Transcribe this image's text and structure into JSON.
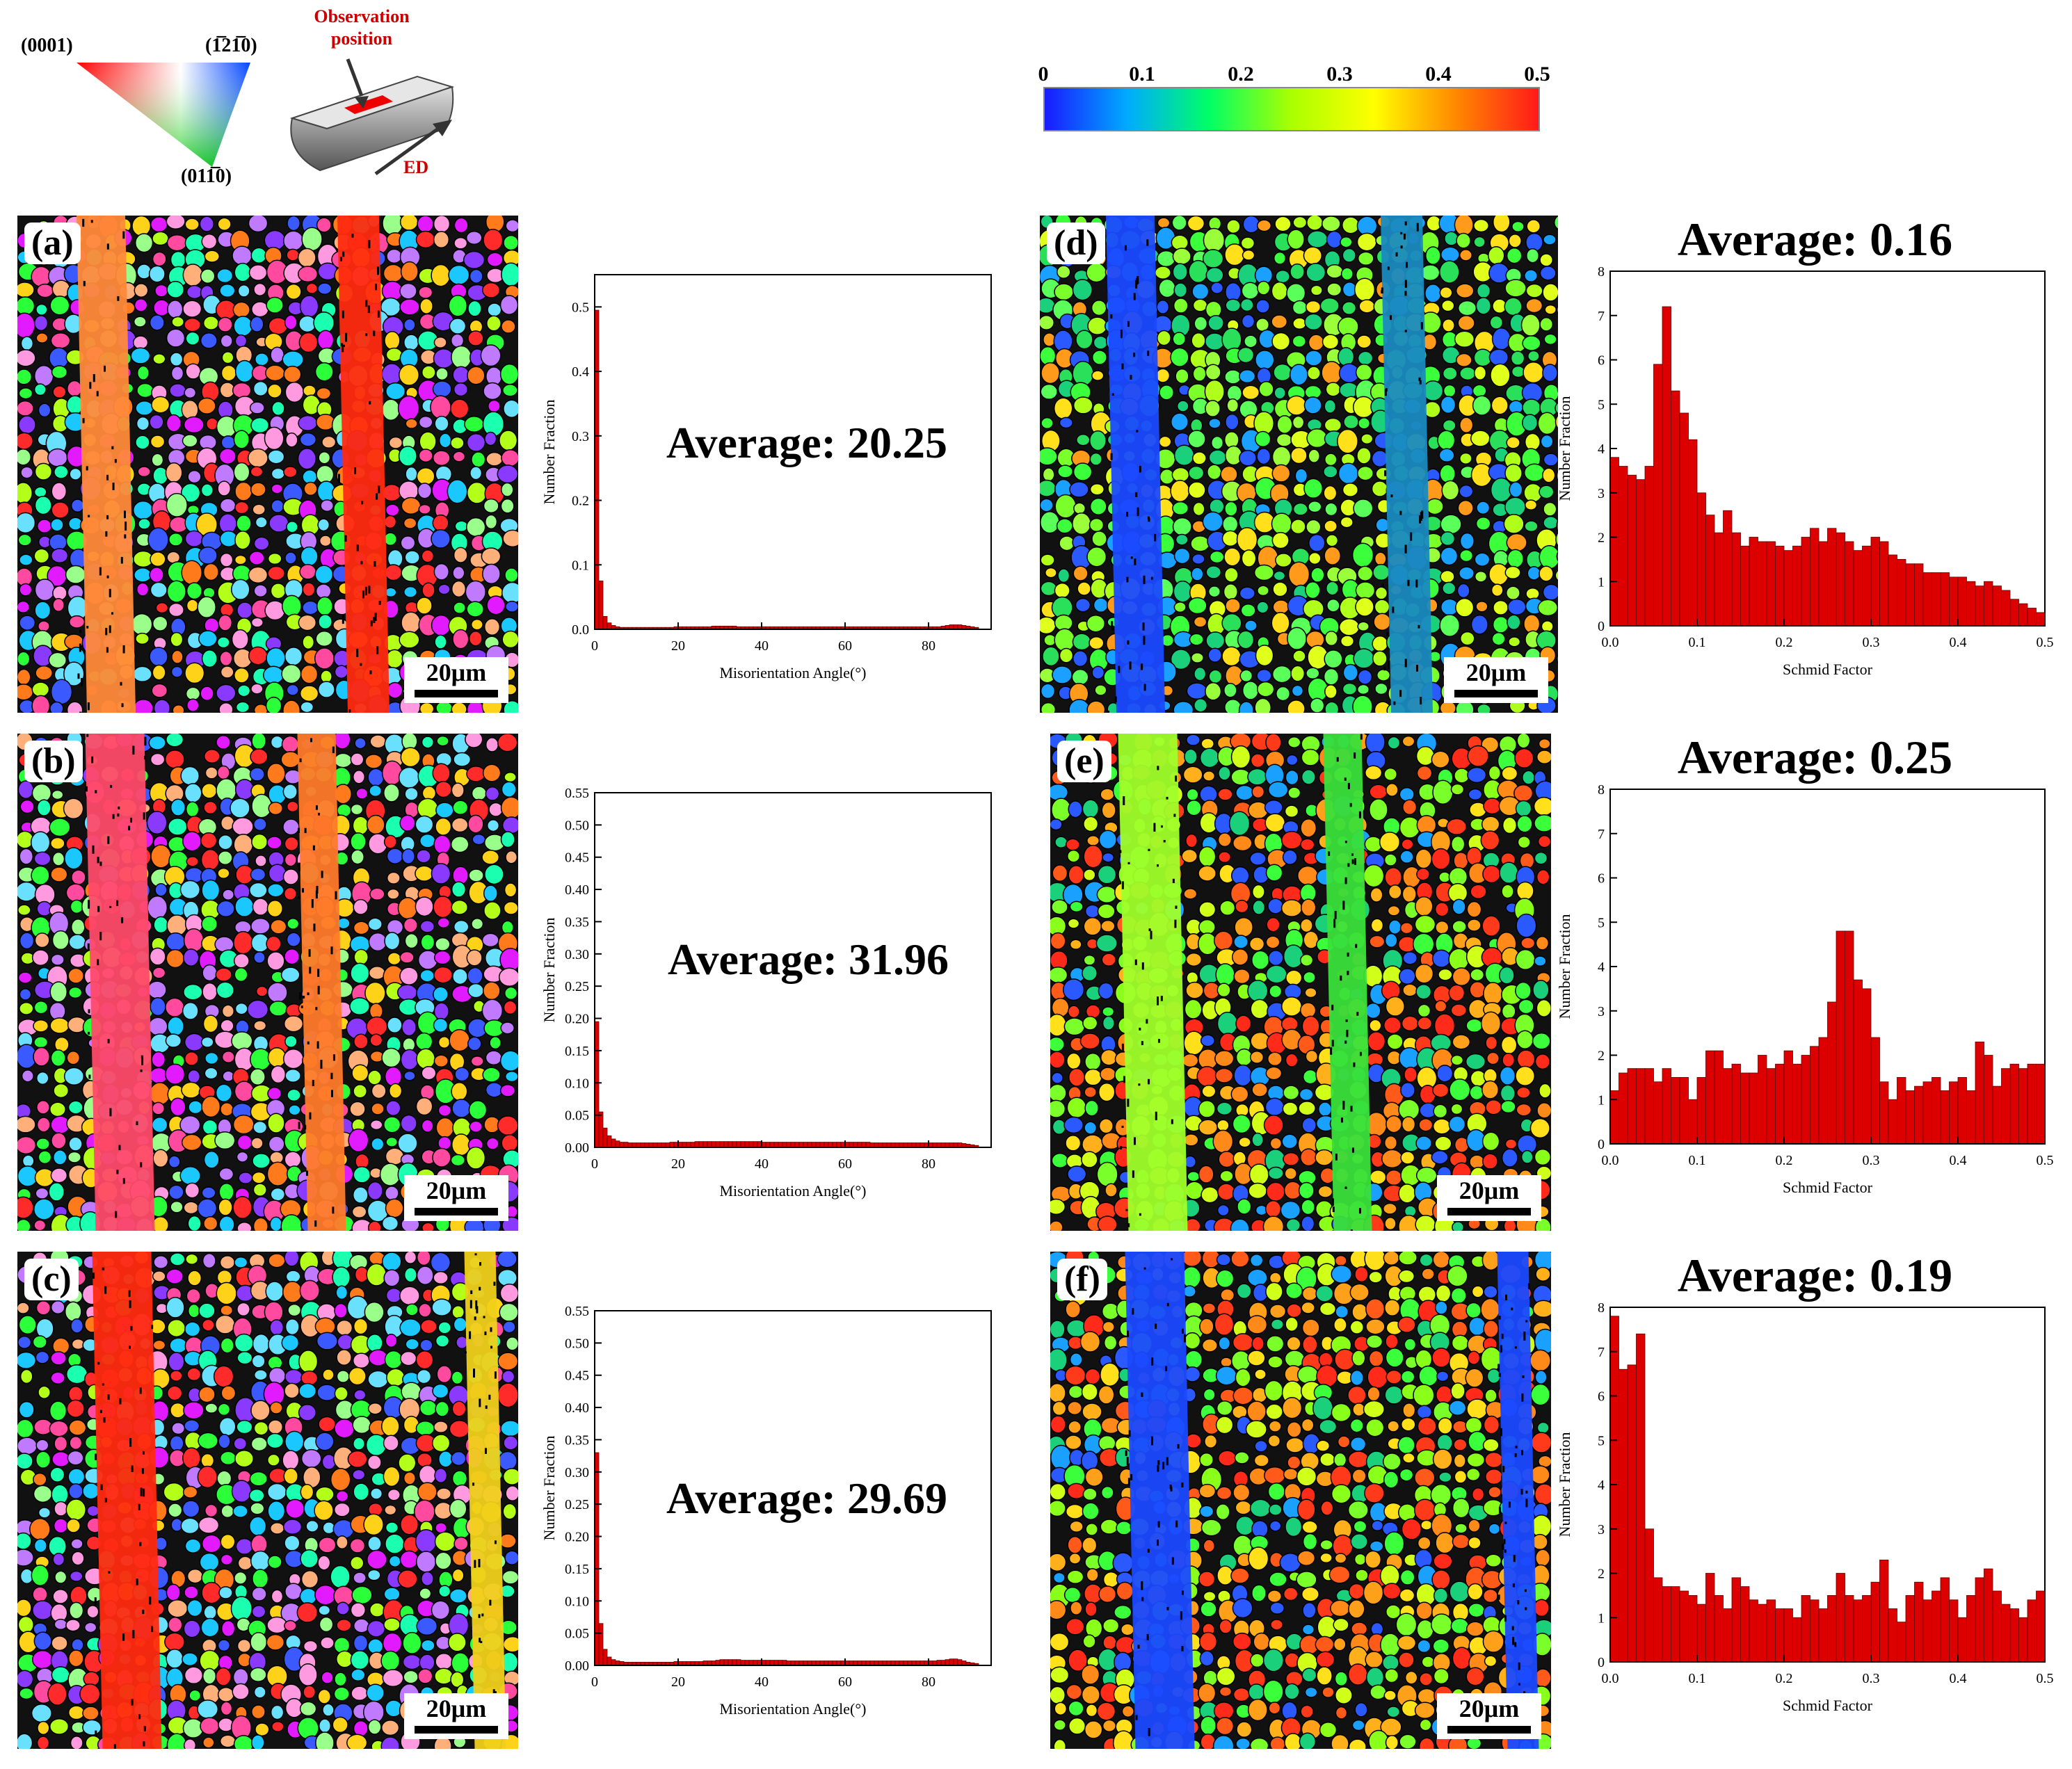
{
  "legend": {
    "ipf_corners": {
      "left": "(0001)",
      "right": "(1̅21̅0)",
      "bottom": "(011̅0)"
    },
    "observation_label": "Observation position",
    "ed_label": "ED"
  },
  "colorbar": {
    "ticks": [
      "0",
      "0.1",
      "0.2",
      "0.3",
      "0.4",
      "0.5"
    ],
    "colors": [
      "#1a1aff",
      "#00aaff",
      "#00ff66",
      "#aaff00",
      "#ffff00",
      "#ff8800",
      "#ff1a1a"
    ]
  },
  "maps": [
    {
      "label": "(a)",
      "scale": "20μm",
      "kind": "ipf"
    },
    {
      "label": "(b)",
      "scale": "20μm",
      "kind": "ipf"
    },
    {
      "label": "(c)",
      "scale": "20μm",
      "kind": "ipf"
    },
    {
      "label": "(d)",
      "scale": "20μm",
      "kind": "sf"
    },
    {
      "label": "(e)",
      "scale": "20μm",
      "kind": "sf"
    },
    {
      "label": "(f)",
      "scale": "20μm",
      "kind": "sf"
    }
  ],
  "chart_data": [
    {
      "id": "misorientation-a",
      "type": "bar",
      "title": "",
      "annotation": "Average: 20.25",
      "xlabel": "Misorientation Angle(°)",
      "ylabel": "Number Fraction",
      "xlim": [
        0,
        95
      ],
      "ylim": [
        0,
        0.55
      ],
      "xticks": [
        "0",
        "20",
        "40",
        "60",
        "80"
      ],
      "yticks": [
        "0.0",
        "0.1",
        "0.2",
        "0.3",
        "0.4",
        "0.5"
      ],
      "bin_width": 1,
      "values": [
        0.495,
        0.075,
        0.02,
        0.01,
        0.006,
        0.004,
        0.003,
        0.003,
        0.003,
        0.003,
        0.003,
        0.003,
        0.003,
        0.003,
        0.003,
        0.003,
        0.003,
        0.003,
        0.003,
        0.004,
        0.004,
        0.004,
        0.004,
        0.004,
        0.004,
        0.004,
        0.004,
        0.004,
        0.005,
        0.005,
        0.005,
        0.005,
        0.005,
        0.005,
        0.004,
        0.004,
        0.004,
        0.004,
        0.004,
        0.004,
        0.004,
        0.004,
        0.004,
        0.004,
        0.004,
        0.004,
        0.004,
        0.004,
        0.004,
        0.004,
        0.004,
        0.004,
        0.004,
        0.004,
        0.004,
        0.004,
        0.004,
        0.004,
        0.004,
        0.004,
        0.004,
        0.004,
        0.004,
        0.004,
        0.004,
        0.004,
        0.004,
        0.004,
        0.004,
        0.004,
        0.004,
        0.004,
        0.004,
        0.004,
        0.004,
        0.004,
        0.004,
        0.004,
        0.004,
        0.004,
        0.004,
        0.004,
        0.004,
        0.005,
        0.006,
        0.007,
        0.007,
        0.007,
        0.006,
        0.005,
        0.004,
        0.003
      ]
    },
    {
      "id": "misorientation-b",
      "type": "bar",
      "title": "",
      "annotation": "Average: 31.96",
      "xlabel": "Misorientation Angle(°)",
      "ylabel": "Number Fraction",
      "xlim": [
        0,
        95
      ],
      "ylim": [
        0,
        0.55
      ],
      "xticks": [
        "0",
        "20",
        "40",
        "60",
        "80"
      ],
      "yticks": [
        "0.00",
        "0.05",
        "0.10",
        "0.15",
        "0.20",
        "0.25",
        "0.30",
        "0.35",
        "0.40",
        "0.45",
        "0.50",
        "0.55"
      ],
      "bin_width": 1,
      "values": [
        0.195,
        0.055,
        0.03,
        0.018,
        0.013,
        0.01,
        0.008,
        0.008,
        0.007,
        0.007,
        0.007,
        0.007,
        0.007,
        0.007,
        0.007,
        0.007,
        0.007,
        0.007,
        0.008,
        0.008,
        0.008,
        0.008,
        0.008,
        0.008,
        0.009,
        0.009,
        0.009,
        0.009,
        0.009,
        0.009,
        0.009,
        0.009,
        0.009,
        0.009,
        0.009,
        0.009,
        0.009,
        0.009,
        0.009,
        0.009,
        0.008,
        0.008,
        0.008,
        0.008,
        0.008,
        0.008,
        0.008,
        0.008,
        0.008,
        0.008,
        0.008,
        0.008,
        0.008,
        0.008,
        0.008,
        0.008,
        0.008,
        0.008,
        0.008,
        0.008,
        0.008,
        0.008,
        0.008,
        0.008,
        0.008,
        0.008,
        0.007,
        0.007,
        0.007,
        0.007,
        0.007,
        0.007,
        0.007,
        0.007,
        0.007,
        0.007,
        0.007,
        0.007,
        0.007,
        0.007,
        0.007,
        0.007,
        0.007,
        0.007,
        0.007,
        0.007,
        0.007,
        0.007,
        0.006,
        0.005,
        0.004,
        0.003
      ]
    },
    {
      "id": "misorientation-c",
      "type": "bar",
      "title": "",
      "annotation": "Average: 29.69",
      "xlabel": "Misorientation Angle(°)",
      "ylabel": "Number Fraction",
      "xlim": [
        0,
        95
      ],
      "ylim": [
        0,
        0.55
      ],
      "xticks": [
        "0",
        "20",
        "40",
        "60",
        "80"
      ],
      "yticks": [
        "0.00",
        "0.05",
        "0.10",
        "0.15",
        "0.20",
        "0.25",
        "0.30",
        "0.35",
        "0.40",
        "0.45",
        "0.50",
        "0.55"
      ],
      "bin_width": 1,
      "values": [
        0.33,
        0.065,
        0.025,
        0.013,
        0.009,
        0.007,
        0.006,
        0.005,
        0.005,
        0.005,
        0.005,
        0.005,
        0.005,
        0.005,
        0.005,
        0.005,
        0.005,
        0.005,
        0.005,
        0.006,
        0.006,
        0.006,
        0.006,
        0.006,
        0.006,
        0.006,
        0.007,
        0.007,
        0.007,
        0.008,
        0.009,
        0.009,
        0.009,
        0.009,
        0.009,
        0.008,
        0.008,
        0.008,
        0.008,
        0.008,
        0.008,
        0.008,
        0.008,
        0.008,
        0.008,
        0.008,
        0.007,
        0.007,
        0.007,
        0.007,
        0.007,
        0.007,
        0.007,
        0.007,
        0.007,
        0.007,
        0.007,
        0.007,
        0.007,
        0.007,
        0.007,
        0.007,
        0.007,
        0.007,
        0.007,
        0.007,
        0.007,
        0.007,
        0.007,
        0.007,
        0.007,
        0.007,
        0.007,
        0.007,
        0.007,
        0.007,
        0.007,
        0.007,
        0.007,
        0.007,
        0.007,
        0.007,
        0.008,
        0.008,
        0.009,
        0.01,
        0.01,
        0.009,
        0.007,
        0.005,
        0.004,
        0.003
      ]
    },
    {
      "id": "schmid-d",
      "type": "bar",
      "title": "Average: 0.16",
      "xlabel": "Schmid Factor",
      "ylabel": "Number Fraction",
      "xlim": [
        0,
        0.5
      ],
      "ylim": [
        0,
        8
      ],
      "xticks": [
        "0.0",
        "0.1",
        "0.2",
        "0.3",
        "0.4",
        "0.5"
      ],
      "yticks": [
        "0",
        "1",
        "2",
        "3",
        "4",
        "5",
        "6",
        "7",
        "8"
      ],
      "bin_width": 0.01,
      "values": [
        3.8,
        3.6,
        3.4,
        3.3,
        3.6,
        5.9,
        7.2,
        5.3,
        4.8,
        4.2,
        3.0,
        2.5,
        2.1,
        2.6,
        2.1,
        1.8,
        2.0,
        1.9,
        1.9,
        1.8,
        1.7,
        1.8,
        2.0,
        2.2,
        1.9,
        2.2,
        2.1,
        1.9,
        1.7,
        1.8,
        2.0,
        1.9,
        1.6,
        1.5,
        1.4,
        1.4,
        1.2,
        1.2,
        1.2,
        1.1,
        1.1,
        1.0,
        0.9,
        1.0,
        0.9,
        0.8,
        0.6,
        0.5,
        0.4,
        0.3
      ]
    },
    {
      "id": "schmid-e",
      "type": "bar",
      "title": "Average: 0.25",
      "xlabel": "Schmid Factor",
      "ylabel": "Number Fraction",
      "xlim": [
        0,
        0.5
      ],
      "ylim": [
        0,
        8
      ],
      "xticks": [
        "0.0",
        "0.1",
        "0.2",
        "0.3",
        "0.4",
        "0.5"
      ],
      "yticks": [
        "0",
        "1",
        "2",
        "3",
        "4",
        "5",
        "6",
        "7",
        "8"
      ],
      "bin_width": 0.01,
      "values": [
        1.2,
        1.6,
        1.7,
        1.7,
        1.7,
        1.4,
        1.7,
        1.5,
        1.5,
        1.0,
        1.5,
        2.1,
        2.1,
        1.7,
        1.8,
        1.6,
        1.6,
        2.0,
        1.7,
        1.8,
        2.1,
        1.8,
        2.0,
        2.2,
        2.4,
        3.2,
        4.8,
        4.8,
        3.7,
        3.5,
        2.4,
        1.4,
        1.0,
        1.5,
        1.2,
        1.3,
        1.4,
        1.5,
        1.2,
        1.4,
        1.5,
        1.2,
        2.3,
        2.0,
        1.3,
        1.7,
        1.8,
        1.7,
        1.8,
        1.8
      ]
    },
    {
      "id": "schmid-f",
      "type": "bar",
      "title": "Average: 0.19",
      "xlabel": "Schmid Factor",
      "ylabel": "Number Fraction",
      "xlim": [
        0,
        0.5
      ],
      "ylim": [
        0,
        8
      ],
      "xticks": [
        "0.0",
        "0.1",
        "0.2",
        "0.3",
        "0.4",
        "0.5"
      ],
      "yticks": [
        "0",
        "1",
        "2",
        "3",
        "4",
        "5",
        "6",
        "7",
        "8"
      ],
      "bin_width": 0.01,
      "values": [
        7.8,
        6.6,
        6.7,
        7.4,
        3.0,
        1.9,
        1.7,
        1.7,
        1.6,
        1.5,
        1.3,
        2.0,
        1.5,
        1.2,
        1.9,
        1.7,
        1.4,
        1.3,
        1.4,
        1.2,
        1.2,
        1.0,
        1.5,
        1.4,
        1.2,
        1.5,
        2.0,
        1.5,
        1.4,
        1.5,
        1.8,
        2.3,
        1.2,
        0.9,
        1.5,
        1.8,
        1.4,
        1.6,
        1.9,
        1.4,
        1.0,
        1.5,
        1.9,
        2.1,
        1.6,
        1.3,
        1.2,
        1.0,
        1.4,
        1.6
      ]
    }
  ]
}
